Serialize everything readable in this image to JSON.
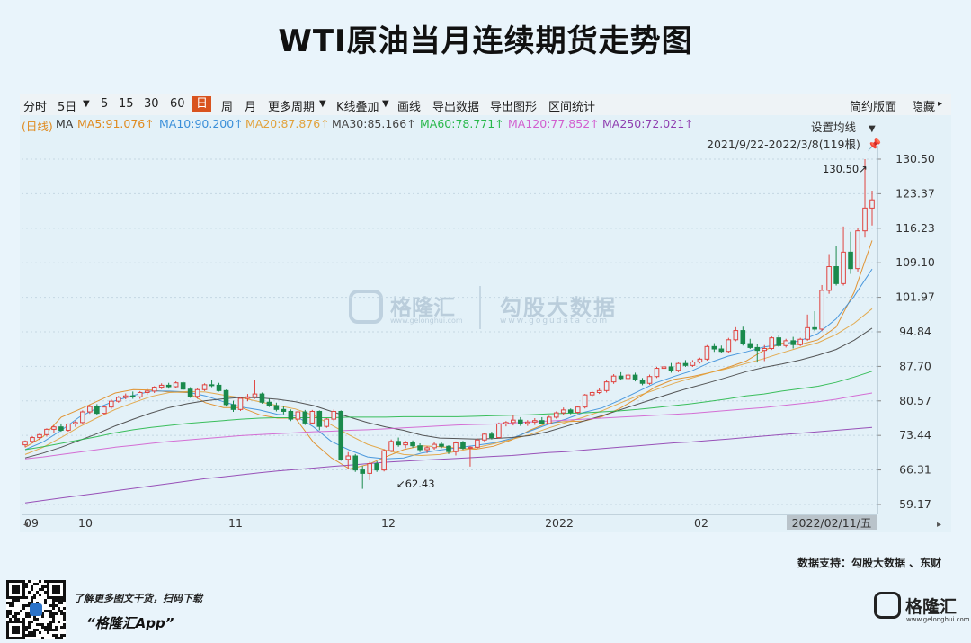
{
  "title": "WTI原油当月连续期货走势图",
  "toolbar": {
    "items": [
      "分时",
      "5日",
      "▼",
      "5",
      "15",
      "30",
      "60",
      "日",
      "周",
      "月",
      "更多周期",
      "▼",
      "K线叠加",
      "▼",
      "画线",
      "导出数据",
      "导出图形",
      "区间统计"
    ],
    "active": "日",
    "right_items": [
      "简约版面",
      "隐藏",
      "▸"
    ]
  },
  "ma_legend": {
    "prefix": "(日线)",
    "ma": "MA",
    "entries": [
      {
        "label": "MA5:91.076↑",
        "color": "#e08a1e"
      },
      {
        "label": "MA10:90.200↑",
        "color": "#3b8fd9"
      },
      {
        "label": "MA20:87.876↑",
        "color": "#e2a23c"
      },
      {
        "label": "MA30:85.166↑",
        "color": "#444444"
      },
      {
        "label": "MA60:78.771↑",
        "color": "#27b84a"
      },
      {
        "label": "MA120:77.852↑",
        "color": "#d25fcf"
      },
      {
        "label": "MA250:72.021↑",
        "color": "#8f3fb0"
      }
    ],
    "set_label": "设置均线",
    "set_arrow": "▼",
    "range_label": "2021/9/22-2022/3/8(119根)",
    "pin_icon": "pin-icon"
  },
  "colors": {
    "up": "#e0433f",
    "down": "#1a8a4c",
    "ma5": "#e08a1e",
    "ma10": "#3b8fd9",
    "ma20": "#e2a23c",
    "ma30": "#444444",
    "ma60": "#27b84a",
    "ma120": "#d25fcf",
    "ma250": "#8f3fb0"
  },
  "chart_data": {
    "type": "candlestick",
    "y_ticks": [
      "130.50",
      "123.37",
      "116.23",
      "109.10",
      "101.97",
      "94.84",
      "87.70",
      "80.57",
      "73.44",
      "66.31",
      "59.17"
    ],
    "ylim": [
      59.17,
      130.5
    ],
    "x_ticks": [
      "09",
      "10",
      "11",
      "12",
      "2022",
      "02",
      "2022/02/11/五"
    ],
    "annotations": [
      {
        "label": "130.50↗"
      },
      {
        "label": "↙62.43"
      }
    ],
    "ohlc": [
      [
        71.5,
        72.4,
        71.0,
        72.2
      ],
      [
        72.2,
        73.3,
        71.8,
        73.0
      ],
      [
        73.0,
        73.8,
        72.5,
        73.6
      ],
      [
        73.6,
        74.9,
        73.2,
        74.7
      ],
      [
        74.7,
        75.5,
        74.0,
        75.2
      ],
      [
        75.2,
        75.9,
        74.2,
        74.5
      ],
      [
        74.5,
        75.9,
        74.2,
        75.8
      ],
      [
        75.8,
        76.5,
        75.2,
        76.1
      ],
      [
        76.1,
        78.6,
        75.8,
        78.3
      ],
      [
        78.3,
        79.8,
        77.9,
        79.4
      ],
      [
        79.4,
        79.9,
        77.6,
        78.0
      ],
      [
        78.0,
        79.6,
        77.6,
        79.3
      ],
      [
        79.3,
        80.9,
        78.9,
        80.5
      ],
      [
        80.5,
        81.6,
        80.2,
        81.3
      ],
      [
        81.3,
        82.1,
        80.9,
        81.6
      ],
      [
        81.6,
        82.5,
        81.0,
        81.4
      ],
      [
        81.4,
        82.6,
        81.0,
        82.3
      ],
      [
        82.3,
        83.1,
        81.8,
        82.6
      ],
      [
        82.6,
        83.6,
        82.2,
        83.4
      ],
      [
        83.4,
        84.2,
        83.0,
        83.8
      ],
      [
        83.8,
        84.3,
        83.1,
        83.5
      ],
      [
        83.5,
        84.6,
        83.2,
        84.3
      ],
      [
        84.3,
        84.6,
        82.8,
        83.0
      ],
      [
        83.0,
        83.4,
        81.2,
        81.5
      ],
      [
        81.5,
        83.2,
        81.0,
        82.9
      ],
      [
        82.9,
        84.2,
        82.6,
        83.9
      ],
      [
        83.9,
        84.8,
        83.4,
        83.8
      ],
      [
        83.8,
        84.3,
        82.5,
        82.7
      ],
      [
        82.7,
        82.9,
        79.4,
        79.8
      ],
      [
        79.8,
        80.6,
        78.3,
        78.8
      ],
      [
        78.8,
        81.4,
        78.5,
        81.1
      ],
      [
        81.1,
        82.0,
        80.5,
        81.4
      ],
      [
        81.4,
        84.9,
        81.0,
        82.0
      ],
      [
        82.0,
        82.3,
        80.0,
        80.3
      ],
      [
        80.3,
        81.0,
        79.3,
        79.6
      ],
      [
        79.6,
        80.2,
        78.4,
        78.8
      ],
      [
        78.8,
        79.4,
        77.8,
        78.4
      ],
      [
        78.4,
        78.8,
        76.4,
        76.8
      ],
      [
        76.8,
        78.6,
        76.4,
        78.3
      ],
      [
        78.3,
        78.7,
        75.6,
        76.0
      ],
      [
        76.0,
        78.7,
        75.8,
        78.4
      ],
      [
        78.4,
        78.6,
        74.5,
        75.3
      ],
      [
        75.3,
        77.0,
        75.0,
        76.8
      ],
      [
        76.8,
        78.8,
        76.4,
        78.4
      ],
      [
        78.4,
        78.6,
        68.2,
        68.5
      ],
      [
        68.5,
        70.0,
        66.4,
        69.2
      ],
      [
        69.2,
        69.6,
        65.9,
        66.3
      ],
      [
        66.3,
        67.1,
        62.4,
        65.6
      ],
      [
        65.6,
        68.0,
        64.2,
        67.6
      ],
      [
        67.6,
        68.1,
        65.9,
        66.3
      ],
      [
        66.3,
        70.6,
        66.0,
        70.3
      ],
      [
        70.3,
        72.6,
        70.0,
        72.2
      ],
      [
        72.2,
        73.0,
        71.1,
        71.5
      ],
      [
        71.5,
        72.3,
        70.8,
        71.9
      ],
      [
        71.9,
        72.4,
        70.9,
        71.3
      ],
      [
        71.3,
        71.8,
        70.0,
        70.5
      ],
      [
        70.5,
        71.2,
        69.8,
        70.9
      ],
      [
        70.9,
        72.0,
        70.5,
        71.6
      ],
      [
        71.6,
        72.1,
        70.8,
        71.2
      ],
      [
        71.2,
        71.4,
        69.6,
        70.1
      ],
      [
        70.1,
        72.2,
        69.3,
        71.9
      ],
      [
        71.9,
        72.3,
        70.5,
        70.8
      ],
      [
        70.8,
        71.2,
        67.0,
        71.0
      ],
      [
        71.0,
        72.8,
        70.7,
        72.5
      ],
      [
        72.5,
        74.0,
        72.1,
        73.7
      ],
      [
        73.7,
        74.2,
        72.6,
        73.0
      ],
      [
        73.0,
        76.1,
        72.8,
        75.8
      ],
      [
        75.8,
        76.4,
        75.3,
        76.1
      ],
      [
        76.1,
        77.6,
        75.5,
        76.6
      ],
      [
        76.6,
        77.2,
        75.4,
        75.9
      ],
      [
        75.9,
        76.6,
        75.4,
        76.2
      ],
      [
        76.2,
        77.0,
        75.6,
        76.5
      ],
      [
        76.5,
        77.2,
        75.7,
        75.9
      ],
      [
        75.9,
        77.5,
        75.7,
        77.2
      ],
      [
        77.2,
        78.4,
        76.9,
        78.1
      ],
      [
        78.1,
        79.2,
        77.6,
        78.7
      ],
      [
        78.7,
        79.0,
        77.8,
        78.2
      ],
      [
        78.2,
        79.6,
        77.9,
        79.3
      ],
      [
        79.3,
        82.0,
        79.0,
        81.8
      ],
      [
        81.8,
        82.6,
        81.4,
        82.3
      ],
      [
        82.3,
        83.2,
        82.0,
        82.7
      ],
      [
        82.7,
        84.8,
        82.3,
        84.5
      ],
      [
        84.5,
        86.1,
        84.1,
        85.7
      ],
      [
        85.7,
        86.5,
        84.8,
        85.2
      ],
      [
        85.2,
        86.3,
        84.9,
        85.9
      ],
      [
        85.9,
        86.4,
        84.6,
        84.9
      ],
      [
        84.9,
        85.3,
        83.8,
        84.2
      ],
      [
        84.2,
        86.0,
        83.9,
        85.6
      ],
      [
        85.6,
        87.6,
        85.3,
        87.3
      ],
      [
        87.3,
        88.1,
        86.9,
        87.6
      ],
      [
        87.6,
        88.4,
        86.4,
        86.9
      ],
      [
        86.9,
        88.5,
        86.5,
        88.3
      ],
      [
        88.3,
        89.0,
        87.6,
        87.9
      ],
      [
        87.9,
        89.0,
        87.6,
        88.6
      ],
      [
        88.6,
        89.5,
        88.3,
        89.2
      ],
      [
        89.2,
        92.1,
        88.9,
        91.8
      ],
      [
        91.8,
        92.5,
        90.7,
        91.3
      ],
      [
        91.3,
        92.0,
        90.4,
        90.8
      ],
      [
        90.8,
        93.6,
        90.5,
        93.2
      ],
      [
        93.2,
        95.8,
        92.9,
        95.1
      ],
      [
        95.1,
        95.9,
        92.0,
        92.4
      ],
      [
        92.4,
        93.4,
        91.3,
        91.6
      ],
      [
        91.6,
        92.3,
        88.5,
        91.0
      ],
      [
        91.0,
        92.1,
        88.8,
        91.4
      ],
      [
        91.4,
        93.9,
        91.1,
        93.6
      ],
      [
        93.6,
        94.2,
        91.7,
        92.0
      ],
      [
        92.0,
        93.4,
        91.6,
        93.0
      ],
      [
        93.0,
        93.8,
        91.4,
        92.2
      ],
      [
        92.2,
        93.6,
        91.9,
        93.3
      ],
      [
        93.3,
        98.4,
        93.0,
        95.7
      ],
      [
        95.7,
        99.1,
        95.0,
        95.4
      ],
      [
        95.4,
        104.5,
        95.0,
        103.4
      ],
      [
        103.4,
        110.9,
        102.7,
        108.3
      ],
      [
        108.3,
        112.5,
        104.4,
        104.8
      ],
      [
        104.8,
        116.6,
        104.4,
        111.3
      ],
      [
        111.3,
        115.5,
        106.8,
        107.9
      ],
      [
        107.9,
        116.2,
        107.3,
        115.7
      ],
      [
        115.7,
        130.5,
        114.3,
        120.4
      ],
      [
        120.4,
        124.0,
        116.8,
        122.1
      ]
    ],
    "ma_series": [
      {
        "name": "MA5",
        "values": [
          71.0,
          73.2,
          77.2,
          78.8,
          80.5,
          82.2,
          82.9,
          82.8,
          82.4,
          82.3,
          80.2,
          79.2,
          79.2,
          77.7,
          77.0,
          77.0,
          72.0,
          68.8,
          66.5,
          67.4,
          69.0,
          70.5,
          71.3,
          71.1,
          70.8,
          70.6,
          71.2,
          72.5,
          74.5,
          76.0,
          76.3,
          76.4,
          77.3,
          79.0,
          81.2,
          83.5,
          85.0,
          85.6,
          86.4,
          87.5,
          88.8,
          91.0,
          92.5,
          92.2,
          93.2,
          95.8,
          103.0,
          113.7
        ]
      },
      {
        "name": "MA10",
        "values": [
          70.5,
          72.1,
          74.5,
          77.2,
          79.1,
          80.6,
          81.7,
          82.6,
          82.6,
          82.4,
          81.6,
          80.4,
          79.3,
          78.7,
          77.8,
          77.5,
          75.2,
          72.2,
          70.4,
          69.0,
          68.6,
          68.8,
          69.8,
          70.4,
          70.9,
          71.4,
          71.9,
          72.8,
          74.3,
          75.7,
          76.8,
          78.2,
          79.1,
          80.7,
          82.5,
          84.3,
          85.6,
          86.8,
          88.5,
          89.8,
          90.7,
          91.7,
          92.3,
          93.0,
          94.5,
          97.5,
          102.2,
          107.8
        ]
      },
      {
        "name": "MA20",
        "values": [
          69.5,
          71.0,
          73.0,
          75.2,
          77.1,
          78.8,
          80.2,
          81.5,
          82.3,
          82.5,
          82.4,
          81.8,
          81.2,
          80.4,
          79.6,
          78.9,
          77.6,
          75.6,
          73.5,
          71.6,
          70.4,
          69.5,
          69.3,
          69.5,
          70.2,
          70.9,
          71.7,
          72.6,
          73.6,
          74.9,
          76.1,
          77.2,
          78.5,
          80.1,
          81.6,
          82.9,
          84.2,
          85.3,
          86.4,
          87.3,
          88.3,
          89.3,
          90.5,
          91.6,
          92.6,
          94.3,
          96.6,
          99.6
        ]
      },
      {
        "name": "MA30",
        "values": [
          68.8,
          69.8,
          71.0,
          72.4,
          73.8,
          75.4,
          76.8,
          78.1,
          79.2,
          80.0,
          80.6,
          81.0,
          81.3,
          81.2,
          80.9,
          80.4,
          79.6,
          78.4,
          77.2,
          76.1,
          75.2,
          74.5,
          73.5,
          72.9,
          72.8,
          72.7,
          72.8,
          73.0,
          73.4,
          74.2,
          75.3,
          76.4,
          77.5,
          78.7,
          79.9,
          81.1,
          82.3,
          83.4,
          84.4,
          85.5,
          86.6,
          87.5,
          88.2,
          89.0,
          90.0,
          91.2,
          93.1,
          95.6
        ]
      },
      {
        "name": "MA60",
        "values": [
          70.5,
          71.1,
          71.8,
          72.5,
          73.2,
          74.0,
          74.6,
          75.1,
          75.5,
          75.9,
          76.2,
          76.5,
          76.8,
          77.0,
          77.1,
          77.1,
          77.1,
          77.1,
          77.2,
          77.2,
          77.2,
          77.3,
          77.3,
          77.3,
          77.3,
          77.4,
          77.5,
          77.6,
          77.7,
          77.9,
          78.0,
          78.1,
          78.3,
          78.5,
          78.8,
          79.2,
          79.6,
          80.0,
          80.5,
          81.0,
          81.6,
          82.0,
          82.6,
          83.1,
          83.6,
          84.4,
          85.5,
          86.7
        ]
      },
      {
        "name": "MA120",
        "values": [
          68.6,
          69.0,
          69.5,
          70.0,
          70.5,
          71.0,
          71.4,
          71.8,
          72.2,
          72.5,
          72.8,
          73.1,
          73.4,
          73.6,
          73.8,
          74.0,
          74.2,
          74.3,
          74.5,
          74.6,
          74.8,
          75.0,
          75.2,
          75.4,
          75.6,
          75.7,
          75.8,
          76.0,
          76.2,
          76.4,
          76.6,
          76.8,
          77.0,
          77.2,
          77.4,
          77.6,
          77.8,
          78.0,
          78.3,
          78.6,
          78.9,
          79.2,
          79.6,
          80.0,
          80.4,
          80.9,
          81.6,
          82.2
        ]
      },
      {
        "name": "MA250",
        "values": [
          59.5,
          60.0,
          60.5,
          61.0,
          61.5,
          62.0,
          62.5,
          63.0,
          63.5,
          64.0,
          64.5,
          64.9,
          65.3,
          65.7,
          66.1,
          66.4,
          66.7,
          67.0,
          67.3,
          67.6,
          67.9,
          68.1,
          68.3,
          68.5,
          68.7,
          68.9,
          69.1,
          69.3,
          69.6,
          69.9,
          70.1,
          70.4,
          70.7,
          71.0,
          71.3,
          71.6,
          71.9,
          72.1,
          72.4,
          72.7,
          73.0,
          73.3,
          73.6,
          73.9,
          74.2,
          74.5,
          74.8,
          75.1
        ]
      }
    ]
  },
  "watermark": {
    "brand": "格隆汇",
    "brand_url": "www.gelonghui.com",
    "partner": "勾股大数据",
    "partner_url": "www.gogudata.com"
  },
  "footer": {
    "source": "数据支持：勾股大数据 、东财",
    "promo_line1": "了解更多图文干货，扫码下载",
    "promo_line2": "“格隆汇App”",
    "logo_text": "格隆汇",
    "logo_url": "www.gelonghui.com"
  }
}
